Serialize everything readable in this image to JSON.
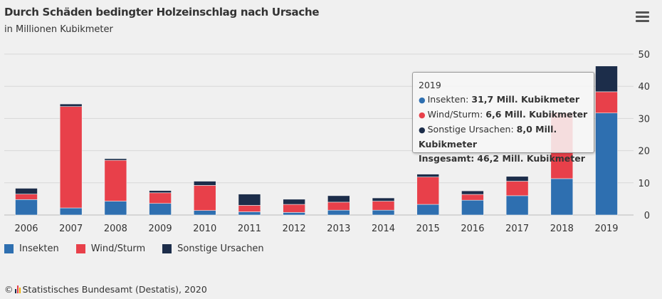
{
  "title": "Durch Schäden bedingter Holzeinschlag nach Ursache",
  "subtitle": "in Millionen Kubikmeter",
  "source": "Statistisches Bundesamt (Destatis), 2020",
  "copyright_symbol": "©",
  "menu_icon": "hamburger-menu-icon",
  "colors": {
    "insekten": "#2e6fb0",
    "windsturm": "#e8404a",
    "sonstige": "#1c2d4a",
    "grid": "#d8d8d8",
    "background": "#f0f0f0"
  },
  "tooltip": {
    "year": "2019",
    "rows": [
      {
        "label": "Insekten:",
        "value": "31,7 Mill. Kubikmeter",
        "color": "#2e6fb0"
      },
      {
        "label": "Wind/Sturm:",
        "value": "6,6 Mill. Kubikmeter",
        "color": "#e8404a"
      },
      {
        "label": "Sonstige Ursachen:",
        "value": "8,0 Mill. Kubikmeter",
        "color": "#1c2d4a"
      }
    ],
    "total_label": "Insgesamt:",
    "total_value": "46,2 Mill. Kubikmeter"
  },
  "chart_data": {
    "type": "bar",
    "stacked": true,
    "title": "Durch Schäden bedingter Holzeinschlag nach Ursache",
    "subtitle": "in Millionen Kubikmeter",
    "categories": [
      "2006",
      "2007",
      "2008",
      "2009",
      "2010",
      "2011",
      "2012",
      "2013",
      "2014",
      "2015",
      "2016",
      "2017",
      "2018",
      "2019"
    ],
    "series": [
      {
        "name": "Insekten",
        "color": "#2e6fb0",
        "values": [
          4.8,
          2.2,
          4.3,
          3.6,
          1.4,
          1.0,
          0.8,
          1.5,
          1.5,
          3.3,
          4.6,
          6.0,
          11.3,
          31.7
        ]
      },
      {
        "name": "Wind/Sturm",
        "color": "#e8404a",
        "values": [
          1.7,
          31.5,
          12.7,
          3.3,
          7.8,
          2.0,
          2.5,
          2.5,
          2.8,
          8.5,
          1.8,
          4.5,
          20.5,
          6.6
        ]
      },
      {
        "name": "Sonstige Ursachen",
        "color": "#1c2d4a",
        "values": [
          1.8,
          0.8,
          0.5,
          0.7,
          1.3,
          3.5,
          1.6,
          2.0,
          1.0,
          0.9,
          1.1,
          1.5,
          0.0,
          8.0
        ]
      }
    ],
    "ylim": [
      0,
      50
    ],
    "yticks": [
      0,
      10,
      20,
      30,
      40,
      50
    ],
    "y_axis_side": "right",
    "grid": true,
    "legend": "bottom-left"
  }
}
